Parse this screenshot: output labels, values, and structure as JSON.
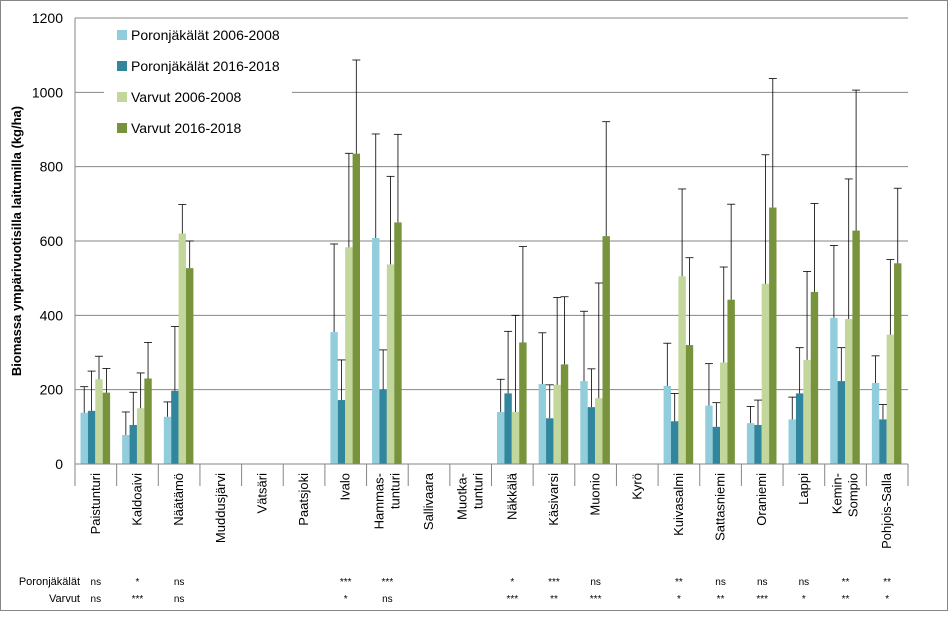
{
  "chart_data": {
    "type": "bar",
    "title": "",
    "xlabel": "",
    "ylabel": "Biomassa ympärivuotisilla laitumilla (kg/ha)",
    "ylim": [
      0,
      1200
    ],
    "yticks": [
      0,
      200,
      400,
      600,
      800,
      1000,
      1200
    ],
    "grid": true,
    "legend_position": "top-left",
    "categories": [
      {
        "lines": [
          "Paistunturi"
        ]
      },
      {
        "lines": [
          "Kaldoaivi"
        ]
      },
      {
        "lines": [
          "Näätämö"
        ]
      },
      {
        "lines": [
          "Muddusjärvi"
        ]
      },
      {
        "lines": [
          "Vätsäri"
        ]
      },
      {
        "lines": [
          "Paatsjoki"
        ]
      },
      {
        "lines": [
          "Ivalo"
        ]
      },
      {
        "lines": [
          "Hammas-",
          "tunturi"
        ]
      },
      {
        "lines": [
          "Sallivaara"
        ]
      },
      {
        "lines": [
          "Muotka-",
          "tunturi"
        ]
      },
      {
        "lines": [
          "Näkkälä"
        ]
      },
      {
        "lines": [
          "Käsivarsi"
        ]
      },
      {
        "lines": [
          "Muonio"
        ]
      },
      {
        "lines": [
          "Kyrö"
        ]
      },
      {
        "lines": [
          "Kuivasalmi"
        ]
      },
      {
        "lines": [
          "Sattasniemi"
        ]
      },
      {
        "lines": [
          "Oraniemi"
        ]
      },
      {
        "lines": [
          "Lappi"
        ]
      },
      {
        "lines": [
          "Kemin-",
          "Sompio"
        ]
      },
      {
        "lines": [
          "Pohjois-Salla"
        ]
      }
    ],
    "series": [
      {
        "name": "Poronjäkälät 2006-2008",
        "color": "#92CDDC",
        "values": [
          138,
          78,
          127,
          null,
          null,
          null,
          355,
          608,
          null,
          null,
          140,
          215,
          223,
          null,
          210,
          157,
          110,
          120,
          393,
          218
        ],
        "errors": [
          70,
          62,
          40,
          null,
          null,
          null,
          237,
          280,
          null,
          null,
          88,
          138,
          188,
          null,
          115,
          113,
          45,
          60,
          195,
          73
        ]
      },
      {
        "name": "Poronjäkälät 2016-2018",
        "color": "#31859C",
        "values": [
          143,
          105,
          197,
          null,
          null,
          null,
          172,
          200,
          null,
          null,
          190,
          123,
          153,
          null,
          115,
          100,
          105,
          190,
          223,
          120
        ],
        "errors": [
          107,
          88,
          173,
          null,
          null,
          null,
          108,
          107,
          null,
          null,
          167,
          90,
          103,
          null,
          75,
          65,
          67,
          123,
          90,
          40
        ]
      },
      {
        "name": "Varvut 2006-2008",
        "color": "#C3D69B",
        "values": [
          228,
          150,
          620,
          null,
          null,
          null,
          583,
          537,
          null,
          null,
          140,
          213,
          177,
          null,
          505,
          273,
          485,
          280,
          390,
          348
        ],
        "errors": [
          62,
          95,
          78,
          null,
          null,
          null,
          253,
          237,
          null,
          null,
          260,
          235,
          310,
          null,
          235,
          257,
          347,
          238,
          377,
          202
        ]
      },
      {
        "name": "Varvut 2016-2018",
        "color": "#77933C",
        "values": [
          192,
          230,
          527,
          null,
          null,
          null,
          835,
          650,
          null,
          null,
          327,
          268,
          613,
          null,
          320,
          442,
          690,
          463,
          628,
          540
        ],
        "errors": [
          65,
          97,
          73,
          null,
          null,
          null,
          252,
          237,
          null,
          null,
          258,
          182,
          308,
          null,
          235,
          257,
          347,
          238,
          378,
          202
        ]
      }
    ],
    "significance": [
      {
        "label": "Poronjäkälät",
        "values": [
          "ns",
          "*",
          "ns",
          "",
          "",
          "",
          "***",
          "***",
          "",
          "",
          "*",
          "***",
          "ns",
          "",
          "**",
          "ns",
          "ns",
          "ns",
          "**",
          "**"
        ]
      },
      {
        "label": "Varvut",
        "values": [
          "ns",
          "***",
          "ns",
          "",
          "",
          "",
          "*",
          "ns",
          "",
          "",
          "***",
          "**",
          "***",
          "",
          "*",
          "**",
          "***",
          "*",
          "**",
          "*"
        ]
      }
    ]
  }
}
